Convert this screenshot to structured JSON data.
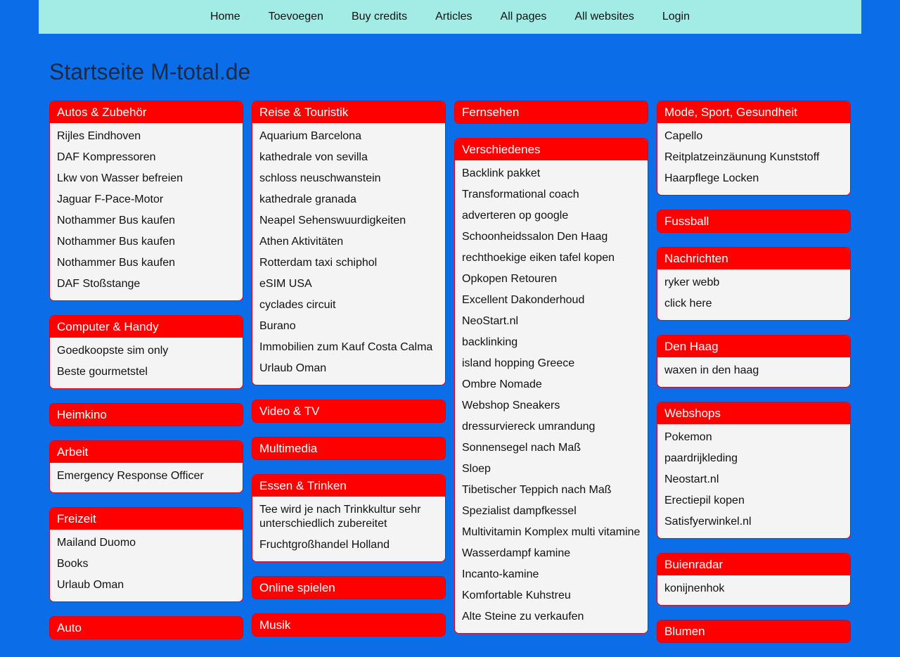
{
  "nav": {
    "items": [
      {
        "label": "Home",
        "name": "nav-home"
      },
      {
        "label": "Toevoegen",
        "name": "nav-toevoegen"
      },
      {
        "label": "Buy credits",
        "name": "nav-buy-credits"
      },
      {
        "label": "Articles",
        "name": "nav-articles"
      },
      {
        "label": "All pages",
        "name": "nav-all-pages"
      },
      {
        "label": "All websites",
        "name": "nav-all-websites"
      },
      {
        "label": "Login",
        "name": "nav-login"
      }
    ]
  },
  "page": {
    "title": "Startseite M-total.de"
  },
  "colors": {
    "background": "#0b6ee8",
    "nav_bg": "#a3ece6",
    "card_header": "#ff0000",
    "card_body": "#f4f4f4"
  },
  "columns": [
    [
      {
        "title": "Autos & Zubehör",
        "links": [
          "Rijles Eindhoven",
          "DAF Kompressoren",
          "Lkw von Wasser befreien",
          "Jaguar F-Pace-Motor",
          "Nothammer Bus kaufen",
          "Nothammer Bus kaufen",
          "Nothammer Bus kaufen",
          "DAF Stoßstange"
        ]
      },
      {
        "title": "Computer & Handy",
        "links": [
          "Goedkoopste sim only",
          "Beste gourmetstel"
        ]
      },
      {
        "title": "Heimkino",
        "links": []
      },
      {
        "title": "Arbeit",
        "links": [
          "Emergency Response Officer"
        ]
      },
      {
        "title": "Freizeit",
        "links": [
          "Mailand Duomo",
          "Books",
          "Urlaub Oman"
        ]
      },
      {
        "title": "Auto",
        "links": []
      }
    ],
    [
      {
        "title": "Reise & Touristik",
        "links": [
          "Aquarium Barcelona",
          "kathedrale von sevilla",
          "schloss neuschwanstein",
          "kathedrale granada",
          "Neapel Sehenswuurdigkeiten",
          "Athen Aktivitäten",
          "Rotterdam taxi schiphol",
          "eSIM USA",
          "cyclades circuit",
          "Burano",
          "Immobilien zum Kauf Costa Calma",
          "Urlaub Oman"
        ]
      },
      {
        "title": "Video & TV",
        "links": []
      },
      {
        "title": "Multimedia",
        "links": []
      },
      {
        "title": "Essen & Trinken",
        "links": [
          "Tee wird je nach Trinkkultur sehr unterschiedlich zubereitet",
          "Fruchtgroßhandel Holland"
        ]
      },
      {
        "title": "Online spielen",
        "links": []
      },
      {
        "title": "Musik",
        "links": []
      }
    ],
    [
      {
        "title": "Fernsehen",
        "links": []
      },
      {
        "title": "Verschiedenes",
        "links": [
          "Backlink pakket",
          "Transformational coach",
          "adverteren op google",
          "Schoonheidssalon Den Haag",
          "rechthoekige eiken tafel kopen",
          "Opkopen Retouren",
          "Excellent Dakonderhoud",
          "NeoStart.nl",
          "backlinking",
          "island hopping Greece",
          "Ombre Nomade",
          "Webshop Sneakers",
          "dressurviereck umrandung",
          "Sonnensegel nach Maß",
          "Sloep",
          "Tibetischer Teppich nach Maß",
          "Spezialist dampfkessel",
          "Multivitamin Komplex multi vitamine",
          "Wasserdampf kamine",
          "Incanto-kamine",
          "Komfortable Kuhstreu",
          "Alte Steine zu verkaufen"
        ]
      }
    ],
    [
      {
        "title": "Mode, Sport, Gesundheit",
        "links": [
          "Capello",
          "Reitplatzeinzäunung Kunststoff",
          "Haarpflege Locken"
        ]
      },
      {
        "title": "Fussball",
        "links": []
      },
      {
        "title": "Nachrichten",
        "links": [
          "ryker webb",
          "click here"
        ]
      },
      {
        "title": "Den Haag",
        "links": [
          "waxen in den haag"
        ]
      },
      {
        "title": "Webshops",
        "links": [
          "Pokemon",
          "paardrijkleding",
          "Neostart.nl",
          "Erectiepil kopen",
          "Satisfyerwinkel.nl"
        ]
      },
      {
        "title": "Buienradar",
        "links": [
          "konijnenhok"
        ]
      },
      {
        "title": "Blumen",
        "links": []
      }
    ]
  ]
}
